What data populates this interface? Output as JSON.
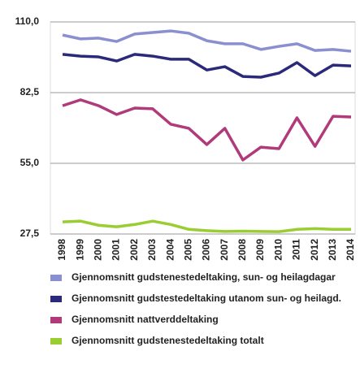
{
  "chart_data": {
    "type": "line",
    "categories": [
      "1998",
      "1999",
      "2000",
      "2001",
      "2002",
      "2003",
      "2004",
      "2005",
      "2006",
      "2007",
      "2008",
      "2009",
      "2010",
      "2011",
      "2012",
      "2013",
      "2014"
    ],
    "series": [
      {
        "name": "Gjennomsnitt gudstenestedeltaking, sun- og heilagdagar",
        "color": "#8a8fd0",
        "values": [
          104.9,
          103.4,
          103.7,
          102.4,
          105.3,
          105.9,
          106.5,
          105.6,
          102.7,
          101.5,
          101.5,
          99.3,
          100.5,
          101.5,
          98.9,
          99.3,
          98.6
        ]
      },
      {
        "name": "Gjennomsnitt gudstestedeltaking utanom sun- og heilagd.",
        "color": "#2b2a7a",
        "values": [
          97.4,
          96.7,
          96.4,
          94.8,
          97.4,
          96.7,
          95.5,
          95.5,
          91.3,
          92.6,
          88.8,
          88.5,
          90.1,
          94.2,
          89.1,
          93.2,
          92.9
        ]
      },
      {
        "name": "Gjennomsnitt nattverddeltaking",
        "color": "#b03a7a",
        "values": [
          77.4,
          79.7,
          77.4,
          74.0,
          76.5,
          76.2,
          70.2,
          68.6,
          62.3,
          68.6,
          56.3,
          61.3,
          60.7,
          72.7,
          61.6,
          73.3,
          73.0
        ]
      },
      {
        "name": "Gjennomsnitt gudstenestedeltaking totalt",
        "color": "#9acd32",
        "values": [
          32.2,
          32.5,
          30.9,
          30.3,
          31.2,
          32.5,
          31.2,
          29.3,
          28.8,
          28.5,
          28.6,
          28.5,
          28.4,
          29.3,
          29.6,
          29.3,
          29.3
        ]
      }
    ],
    "ylim": [
      27.5,
      110
    ],
    "yticks": [
      {
        "value": 27.5,
        "label": "27,5"
      },
      {
        "value": 55,
        "label": "55,0"
      },
      {
        "value": 82.5,
        "label": "82,5"
      },
      {
        "value": 110,
        "label": "110,0"
      }
    ],
    "grid": true
  }
}
